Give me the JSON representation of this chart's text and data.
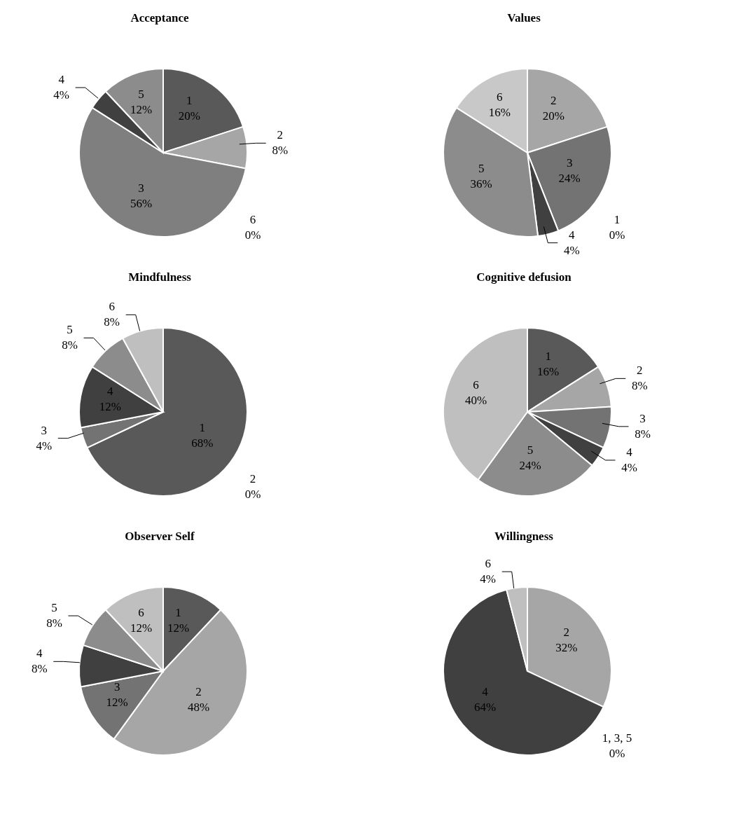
{
  "chart_data": [
    {
      "type": "pie",
      "title": "Acceptance",
      "categories": [
        "1",
        "2",
        "3",
        "4",
        "5",
        "6"
      ],
      "values": [
        20,
        8,
        56,
        4,
        12,
        0
      ],
      "value_labels": [
        "20%",
        "8%",
        "56%",
        "4%",
        "12%",
        "0%"
      ],
      "colors": [
        "#595959",
        "#a6a6a6",
        "#7f7f7f",
        "#404040",
        "#8c8c8c",
        "#bfbfbf"
      ],
      "legend": false
    },
    {
      "type": "pie",
      "title": "Values",
      "categories": [
        "1",
        "2",
        "3",
        "4",
        "5",
        "6"
      ],
      "values": [
        0,
        20,
        24,
        4,
        36,
        16
      ],
      "value_labels": [
        "0%",
        "20%",
        "24%",
        "4%",
        "36%",
        "16%"
      ],
      "colors": [
        "#595959",
        "#a6a6a6",
        "#737373",
        "#404040",
        "#8c8c8c",
        "#c8c8c8"
      ],
      "legend": false
    },
    {
      "type": "pie",
      "title": "Mindfulness",
      "categories": [
        "1",
        "2",
        "3",
        "4",
        "5",
        "6"
      ],
      "values": [
        68,
        0,
        4,
        12,
        8,
        8
      ],
      "value_labels": [
        "68%",
        "0%",
        "4%",
        "12%",
        "8%",
        "8%"
      ],
      "colors": [
        "#595959",
        "#a6a6a6",
        "#737373",
        "#404040",
        "#8c8c8c",
        "#bfbfbf"
      ],
      "legend": false
    },
    {
      "type": "pie",
      "title": "Cognitive defusion",
      "categories": [
        "1",
        "2",
        "3",
        "4",
        "5",
        "6"
      ],
      "values": [
        16,
        8,
        8,
        4,
        24,
        40
      ],
      "value_labels": [
        "16%",
        "8%",
        "8%",
        "4%",
        "24%",
        "40%"
      ],
      "colors": [
        "#595959",
        "#a6a6a6",
        "#737373",
        "#404040",
        "#8c8c8c",
        "#bfbfbf"
      ],
      "legend": false
    },
    {
      "type": "pie",
      "title": "Observer Self",
      "categories": [
        "1",
        "2",
        "3",
        "4",
        "5",
        "6"
      ],
      "values": [
        12,
        48,
        12,
        8,
        8,
        12
      ],
      "value_labels": [
        "12%",
        "48%",
        "12%",
        "8%",
        "8%",
        "12%"
      ],
      "colors": [
        "#595959",
        "#a6a6a6",
        "#737373",
        "#404040",
        "#8c8c8c",
        "#bfbfbf"
      ],
      "legend": false
    },
    {
      "type": "pie",
      "title": "Willingness",
      "categories": [
        "1, 3, 5",
        "2",
        "4",
        "6"
      ],
      "values": [
        0,
        32,
        64,
        4
      ],
      "value_labels": [
        "0%",
        "32%",
        "64%",
        "4%"
      ],
      "colors": [
        "#595959",
        "#a6a6a6",
        "#404040",
        "#bfbfbf"
      ],
      "legend": false
    }
  ]
}
